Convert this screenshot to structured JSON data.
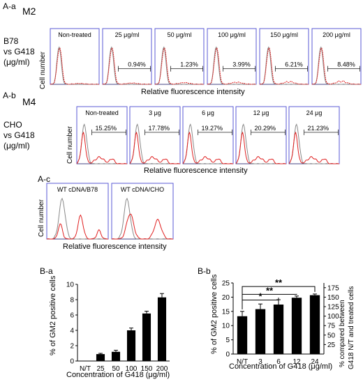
{
  "panels": {
    "Aa": {
      "label": "A-a",
      "marker": "M2",
      "side_label": [
        "B78",
        "vs G418",
        "(μg/ml)"
      ],
      "ylabel": "Cell number",
      "xlabel": "Relative fluorescence intensity",
      "plots": [
        {
          "title": "Non-treated",
          "percent": ""
        },
        {
          "title": "25 μg/ml",
          "percent": "0.94%"
        },
        {
          "title": "50 μg/ml",
          "percent": "1.23%"
        },
        {
          "title": "100 μg/ml",
          "percent": "3.99%"
        },
        {
          "title": "150 μg/ml",
          "percent": "6.21%"
        },
        {
          "title": "200 μg/ml",
          "percent": "8.48%"
        }
      ]
    },
    "Ab": {
      "label": "A-b",
      "marker": "M4",
      "side_label": [
        "CHO",
        "vs G418",
        "(μg/ml)"
      ],
      "ylabel": "Cell number",
      "xlabel": "Relative fluorescence intensity",
      "plots": [
        {
          "title": "Non-treated",
          "percent": "15.25%"
        },
        {
          "title": "3 μg",
          "percent": "17.78%"
        },
        {
          "title": "6 μg",
          "percent": "19.27%"
        },
        {
          "title": "12 μg",
          "percent": "20.29%"
        },
        {
          "title": "24 μg",
          "percent": "21.23%"
        }
      ]
    },
    "Ac": {
      "label": "A-c",
      "ylabel": "Cell number",
      "xlabel": "Relative fluorescence intensity",
      "plots": [
        {
          "title": "WT cDNA/B78"
        },
        {
          "title": "WT cDNA/CHO"
        }
      ]
    }
  },
  "chart_data": [
    {
      "type": "bar",
      "label": "B-a",
      "categories": [
        "N/T",
        "25",
        "50",
        "100",
        "150",
        "200"
      ],
      "values": [
        0,
        0.9,
        1.2,
        4.0,
        6.2,
        8.3
      ],
      "errors": [
        0,
        0.1,
        0.2,
        0.3,
        0.3,
        0.5
      ],
      "ylabel": "% of GM2 positive cells",
      "xlabel": "Concentration of G418 (μg/ml)",
      "ylim": [
        0,
        10
      ],
      "yticks": [
        "0",
        "2",
        "4",
        "6",
        "8",
        "10"
      ],
      "bar_color": "#000000"
    },
    {
      "type": "bar",
      "label": "B-b",
      "categories": [
        "N/T",
        "3",
        "6",
        "12",
        "24"
      ],
      "values": [
        13.3,
        15.8,
        17.4,
        19.8,
        20.7
      ],
      "errors": [
        1.7,
        1.8,
        1.7,
        0.6,
        0.4
      ],
      "ylabel": "% of GM2 positive cells",
      "ylabel_right": "% compared between G418 N/T and treated cells",
      "xlabel": "Concentration of G418 (μg/ml)",
      "ylim": [
        0,
        25
      ],
      "yticks": [
        "0",
        "5",
        "10",
        "15",
        "20",
        "25"
      ],
      "y2lim": [
        0,
        187.5
      ],
      "y2ticks": [
        "25",
        "50",
        "75",
        "100",
        "125",
        "150",
        "175"
      ],
      "significance": [
        {
          "from": "N/T",
          "to": "6",
          "label": "*"
        },
        {
          "from": "N/T",
          "to": "12",
          "label": "**"
        },
        {
          "from": "N/T",
          "to": "24",
          "label": "**"
        }
      ],
      "bar_color": "#000000"
    }
  ]
}
